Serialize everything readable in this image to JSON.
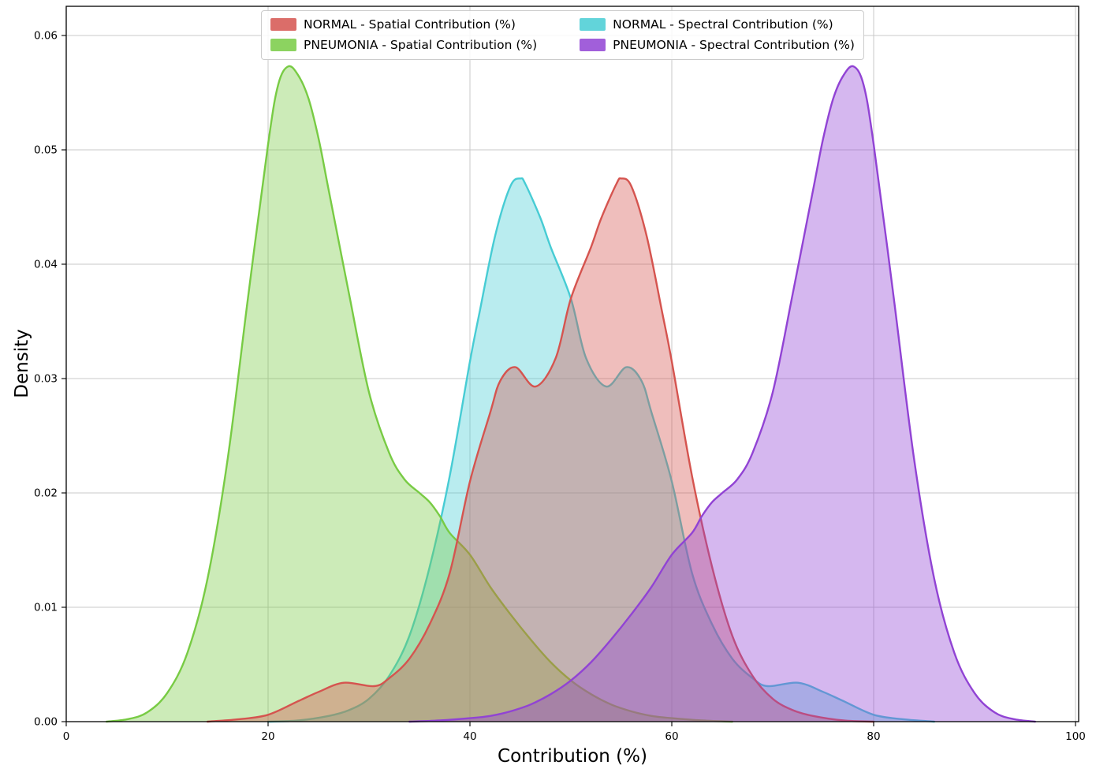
{
  "chart_data": {
    "type": "area",
    "subtype": "kde-density",
    "title": "",
    "xlabel": "Contribution (%)",
    "ylabel": "Density",
    "xlim": [
      0,
      100
    ],
    "ylim": [
      0,
      0.0625
    ],
    "x_ticks": [
      "0",
      "20",
      "40",
      "60",
      "80",
      "100"
    ],
    "y_ticks": [
      "0.00",
      "0.01",
      "0.02",
      "0.03",
      "0.04",
      "0.05",
      "0.06"
    ],
    "grid": true,
    "legend": {
      "position": "upper center",
      "columns": 2
    },
    "draw_order": [
      2,
      1,
      0,
      3
    ],
    "series": [
      {
        "id": "normal-spatial",
        "label": "NORMAL - Spatial Contribution (%)",
        "color": "#d5544f",
        "fill_opacity": 0.38,
        "peak": {
          "x": 55,
          "density": 0.0475
        },
        "points": [
          [
            14,
            0
          ],
          [
            17,
            0.0002
          ],
          [
            20,
            0.0006
          ],
          [
            23,
            0.0018
          ],
          [
            25,
            0.0026
          ],
          [
            27.5,
            0.0034
          ],
          [
            30.5,
            0.0031
          ],
          [
            32,
            0.0038
          ],
          [
            34,
            0.0055
          ],
          [
            36,
            0.0085
          ],
          [
            38,
            0.013
          ],
          [
            40,
            0.021
          ],
          [
            42,
            0.027
          ],
          [
            43,
            0.0298
          ],
          [
            44.5,
            0.031
          ],
          [
            46.5,
            0.0293
          ],
          [
            48.5,
            0.0318
          ],
          [
            50,
            0.037
          ],
          [
            52,
            0.0415
          ],
          [
            53,
            0.044
          ],
          [
            54.5,
            0.047
          ],
          [
            55,
            0.0475
          ],
          [
            56,
            0.0468
          ],
          [
            57.5,
            0.0425
          ],
          [
            59,
            0.036
          ],
          [
            60,
            0.0315
          ],
          [
            62,
            0.0215
          ],
          [
            64,
            0.0135
          ],
          [
            66,
            0.0075
          ],
          [
            68,
            0.004
          ],
          [
            70,
            0.002
          ],
          [
            72,
            0.001
          ],
          [
            74,
            0.0005
          ],
          [
            77,
            0.0001
          ],
          [
            80,
            0
          ]
        ]
      },
      {
        "id": "pneumonia-spatial",
        "label": "PNEUMONIA - Spatial Contribution (%)",
        "color": "#78cb44",
        "fill_opacity": 0.38,
        "peak": {
          "x": 22,
          "density": 0.0573
        },
        "points": [
          [
            4,
            0
          ],
          [
            6,
            0.0002
          ],
          [
            8,
            0.0008
          ],
          [
            10,
            0.0025
          ],
          [
            12,
            0.006
          ],
          [
            14,
            0.0125
          ],
          [
            16,
            0.023
          ],
          [
            18,
            0.037
          ],
          [
            20,
            0.0505
          ],
          [
            21,
            0.0557
          ],
          [
            22,
            0.0573
          ],
          [
            23,
            0.0565
          ],
          [
            24,
            0.0545
          ],
          [
            25,
            0.051
          ],
          [
            26,
            0.0465
          ],
          [
            28,
            0.0375
          ],
          [
            30,
            0.0288
          ],
          [
            32,
            0.0235
          ],
          [
            33.5,
            0.0212
          ],
          [
            35,
            0.02
          ],
          [
            36,
            0.0192
          ],
          [
            37,
            0.018
          ],
          [
            38,
            0.0165
          ],
          [
            40,
            0.0146
          ],
          [
            42,
            0.0118
          ],
          [
            44,
            0.0094
          ],
          [
            46,
            0.0072
          ],
          [
            48,
            0.0052
          ],
          [
            50,
            0.0036
          ],
          [
            52,
            0.0024
          ],
          [
            54,
            0.0015
          ],
          [
            56,
            0.0009
          ],
          [
            58,
            0.0005
          ],
          [
            60,
            0.0003
          ],
          [
            63,
            0.0001
          ],
          [
            66,
            0
          ]
        ]
      },
      {
        "id": "normal-spectral",
        "label": "NORMAL - Spectral Contribution (%)",
        "color": "#47ccd4",
        "fill_opacity": 0.38,
        "peak": {
          "x": 45,
          "density": 0.0475
        },
        "points": [
          [
            20,
            0
          ],
          [
            23,
            0.0001
          ],
          [
            26,
            0.0005
          ],
          [
            28,
            0.001
          ],
          [
            30,
            0.002
          ],
          [
            32,
            0.004
          ],
          [
            34,
            0.0075
          ],
          [
            36,
            0.0135
          ],
          [
            38,
            0.0215
          ],
          [
            40,
            0.0315
          ],
          [
            41,
            0.036
          ],
          [
            42.5,
            0.0425
          ],
          [
            44,
            0.0468
          ],
          [
            45,
            0.0475
          ],
          [
            45.5,
            0.047
          ],
          [
            47,
            0.044
          ],
          [
            48,
            0.0415
          ],
          [
            50,
            0.037
          ],
          [
            51.5,
            0.0318
          ],
          [
            53.5,
            0.0293
          ],
          [
            55.5,
            0.031
          ],
          [
            57,
            0.0298
          ],
          [
            58,
            0.027
          ],
          [
            60,
            0.021
          ],
          [
            62,
            0.013
          ],
          [
            64,
            0.0085
          ],
          [
            66,
            0.0055
          ],
          [
            68,
            0.0038
          ],
          [
            69.5,
            0.0031
          ],
          [
            72.5,
            0.0034
          ],
          [
            75,
            0.0026
          ],
          [
            77,
            0.0018
          ],
          [
            80,
            0.0006
          ],
          [
            83,
            0.0002
          ],
          [
            86,
            0
          ]
        ]
      },
      {
        "id": "pneumonia-spectral",
        "label": "PNEUMONIA - Spectral Contribution (%)",
        "color": "#9143d4",
        "fill_opacity": 0.38,
        "peak": {
          "x": 78,
          "density": 0.0573
        },
        "points": [
          [
            34,
            0
          ],
          [
            37,
            0.0001
          ],
          [
            40,
            0.0003
          ],
          [
            42,
            0.0005
          ],
          [
            44,
            0.0009
          ],
          [
            46,
            0.0015
          ],
          [
            48,
            0.0024
          ],
          [
            50,
            0.0036
          ],
          [
            52,
            0.0052
          ],
          [
            54,
            0.0072
          ],
          [
            56,
            0.0094
          ],
          [
            58,
            0.0118
          ],
          [
            60,
            0.0146
          ],
          [
            62,
            0.0165
          ],
          [
            63,
            0.018
          ],
          [
            64,
            0.0192
          ],
          [
            65,
            0.02
          ],
          [
            66.5,
            0.0212
          ],
          [
            68,
            0.0235
          ],
          [
            70,
            0.0288
          ],
          [
            72,
            0.0375
          ],
          [
            74,
            0.0465
          ],
          [
            75,
            0.051
          ],
          [
            76,
            0.0545
          ],
          [
            77,
            0.0565
          ],
          [
            78,
            0.0573
          ],
          [
            79,
            0.0557
          ],
          [
            80,
            0.0505
          ],
          [
            82,
            0.037
          ],
          [
            84,
            0.023
          ],
          [
            86,
            0.0125
          ],
          [
            88,
            0.006
          ],
          [
            90,
            0.0025
          ],
          [
            92,
            0.0008
          ],
          [
            94,
            0.0002
          ],
          [
            96,
            0
          ]
        ]
      }
    ],
    "style": {
      "grid_color": "#c9c9c9",
      "spine_color": "#000000",
      "background": "#ffffff"
    }
  }
}
